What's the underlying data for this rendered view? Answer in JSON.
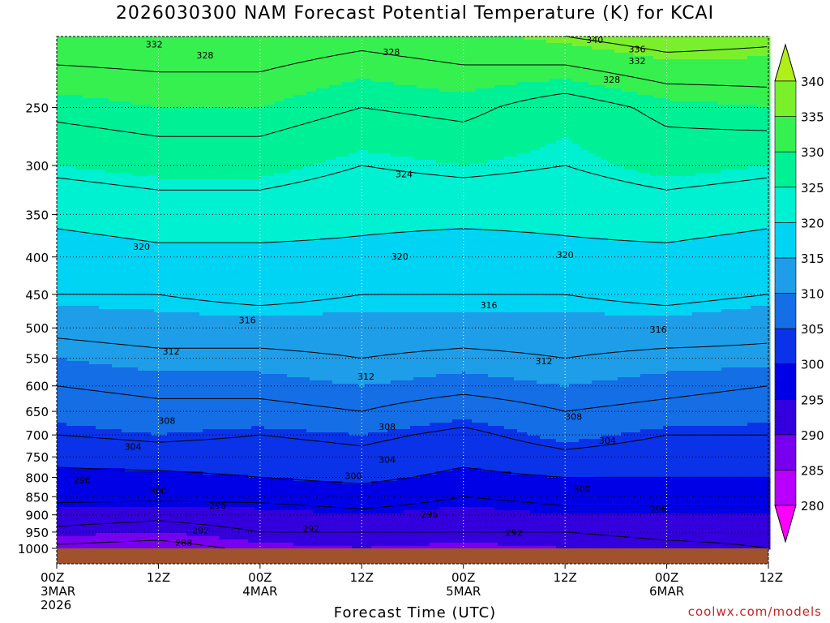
{
  "title": "2026030300 NAM Forecast Potential Temperature (K) for KCAI",
  "xlabel": "Forecast Time (UTC)",
  "credit": "coolwx.com/models",
  "chart_data": {
    "type": "heatmap",
    "title": "2026030300 NAM Forecast Potential Temperature (K) for KCAI",
    "xlabel": "Forecast Time (UTC)",
    "ylabel": "",
    "y_scale": "log",
    "y_inverted": true,
    "ylim": [
      1000,
      200
    ],
    "y_ticks": [
      250,
      300,
      350,
      400,
      450,
      500,
      550,
      600,
      650,
      700,
      750,
      800,
      850,
      900,
      950,
      1000
    ],
    "xlim": [
      0,
      84
    ],
    "x_ticks": [
      {
        "hour": 0,
        "lines": [
          "00Z",
          "3MAR",
          "2026"
        ]
      },
      {
        "hour": 12,
        "lines": [
          "12Z"
        ]
      },
      {
        "hour": 24,
        "lines": [
          "00Z",
          "4MAR"
        ]
      },
      {
        "hour": 36,
        "lines": [
          "12Z"
        ]
      },
      {
        "hour": 48,
        "lines": [
          "00Z",
          "5MAR"
        ]
      },
      {
        "hour": 60,
        "lines": [
          "12Z"
        ]
      },
      {
        "hour": 72,
        "lines": [
          "00Z",
          "6MAR"
        ]
      },
      {
        "hour": 84,
        "lines": [
          "12Z"
        ]
      }
    ],
    "grid": true,
    "colorbar": {
      "levels": [
        280,
        285,
        290,
        295,
        300,
        305,
        310,
        315,
        320,
        325,
        330,
        335,
        340
      ],
      "colors": [
        "#ff00ff",
        "#b700ff",
        "#7700ee",
        "#3300dd",
        "#0000e6",
        "#0a32e8",
        "#146ee6",
        "#1e9ee8",
        "#00d4f4",
        "#00f0d2",
        "#00f096",
        "#36f050",
        "#7aef2c",
        "#b0ef18"
      ],
      "position": "right"
    },
    "contour_interval": 4,
    "profiles": [
      {
        "hour": 0,
        "levels": [
          [
            1000,
            287
          ],
          [
            950,
            291
          ],
          [
            900,
            294
          ],
          [
            850,
            297
          ],
          [
            800,
            299
          ],
          [
            750,
            301
          ],
          [
            700,
            304
          ],
          [
            650,
            306
          ],
          [
            600,
            308
          ],
          [
            550,
            310
          ],
          [
            500,
            313
          ],
          [
            450,
            316
          ],
          [
            400,
            318
          ],
          [
            350,
            321
          ],
          [
            300,
            325
          ],
          [
            250,
            329
          ],
          [
            200,
            334
          ]
        ]
      },
      {
        "hour": 12,
        "levels": [
          [
            1000,
            286
          ],
          [
            950,
            290
          ],
          [
            900,
            293
          ],
          [
            850,
            297
          ],
          [
            800,
            299
          ],
          [
            750,
            302
          ],
          [
            700,
            305
          ],
          [
            650,
            307
          ],
          [
            600,
            309
          ],
          [
            550,
            311
          ],
          [
            500,
            314
          ],
          [
            450,
            316
          ],
          [
            400,
            319
          ],
          [
            350,
            322
          ],
          [
            300,
            326
          ],
          [
            250,
            330
          ],
          [
            200,
            334
          ]
        ]
      },
      {
        "hour": 24,
        "levels": [
          [
            1000,
            289
          ],
          [
            950,
            292
          ],
          [
            900,
            294
          ],
          [
            850,
            297
          ],
          [
            800,
            300
          ],
          [
            750,
            302
          ],
          [
            700,
            304
          ],
          [
            650,
            307
          ],
          [
            600,
            309
          ],
          [
            550,
            311
          ],
          [
            500,
            314
          ],
          [
            450,
            317
          ],
          [
            400,
            319
          ],
          [
            350,
            322
          ],
          [
            300,
            326
          ],
          [
            250,
            330
          ],
          [
            200,
            334
          ]
        ]
      },
      {
        "hour": 36,
        "levels": [
          [
            1000,
            290
          ],
          [
            950,
            292
          ],
          [
            900,
            295
          ],
          [
            850,
            298
          ],
          [
            800,
            301
          ],
          [
            750,
            303
          ],
          [
            700,
            305
          ],
          [
            650,
            308
          ],
          [
            600,
            310
          ],
          [
            550,
            312
          ],
          [
            500,
            314
          ],
          [
            450,
            316
          ],
          [
            400,
            319
          ],
          [
            350,
            321
          ],
          [
            300,
            324
          ],
          [
            250,
            328
          ],
          [
            200,
            333
          ]
        ]
      },
      {
        "hour": 48,
        "levels": [
          [
            1000,
            289
          ],
          [
            950,
            292
          ],
          [
            900,
            294
          ],
          [
            850,
            296
          ],
          [
            800,
            299
          ],
          [
            750,
            301
          ],
          [
            700,
            303
          ],
          [
            650,
            306
          ],
          [
            600,
            309
          ],
          [
            550,
            311
          ],
          [
            500,
            314
          ],
          [
            450,
            316
          ],
          [
            400,
            318
          ],
          [
            350,
            321
          ],
          [
            300,
            325
          ],
          [
            250,
            329
          ],
          [
            200,
            334
          ]
        ]
      },
      {
        "hour": 60,
        "levels": [
          [
            1000,
            290
          ],
          [
            950,
            292
          ],
          [
            900,
            295
          ],
          [
            850,
            297
          ],
          [
            800,
            300
          ],
          [
            750,
            303
          ],
          [
            700,
            306
          ],
          [
            650,
            308
          ],
          [
            600,
            310
          ],
          [
            550,
            312
          ],
          [
            500,
            314
          ],
          [
            450,
            316
          ],
          [
            400,
            319
          ],
          [
            350,
            321
          ],
          [
            300,
            324
          ],
          [
            250,
            326
          ],
          [
            200,
            336
          ]
        ]
      },
      {
        "hour": 72,
        "levels": [
          [
            1000,
            291
          ],
          [
            950,
            293
          ],
          [
            900,
            295
          ],
          [
            850,
            297
          ],
          [
            800,
            300
          ],
          [
            750,
            302
          ],
          [
            700,
            304
          ],
          [
            650,
            307
          ],
          [
            600,
            309
          ],
          [
            550,
            311
          ],
          [
            500,
            314
          ],
          [
            450,
            317
          ],
          [
            400,
            319
          ],
          [
            350,
            322
          ],
          [
            300,
            326
          ],
          [
            250,
            329
          ],
          [
            200,
            338
          ]
        ]
      },
      {
        "hour": 84,
        "levels": [
          [
            1000,
            292
          ],
          [
            950,
            293
          ],
          [
            900,
            295
          ],
          [
            850,
            297
          ],
          [
            800,
            300
          ],
          [
            750,
            302
          ],
          [
            700,
            304
          ],
          [
            650,
            306
          ],
          [
            600,
            308
          ],
          [
            550,
            311
          ],
          [
            500,
            313
          ],
          [
            450,
            316
          ],
          [
            400,
            318
          ],
          [
            350,
            321
          ],
          [
            300,
            325
          ],
          [
            250,
            330
          ],
          [
            200,
            337
          ]
        ]
      }
    ],
    "contour_labels": [
      {
        "value": 332,
        "hour": 11.5,
        "p": 205
      },
      {
        "value": 328,
        "hour": 17.5,
        "p": 212
      },
      {
        "value": 328,
        "hour": 39.5,
        "p": 210
      },
      {
        "value": 340,
        "hour": 63.5,
        "p": 202
      },
      {
        "value": 336,
        "hour": 68.5,
        "p": 208
      },
      {
        "value": 332,
        "hour": 68.5,
        "p": 216
      },
      {
        "value": 328,
        "hour": 65.5,
        "p": 229
      },
      {
        "value": 324,
        "hour": 41,
        "p": 308
      },
      {
        "value": 320,
        "hour": 10,
        "p": 387
      },
      {
        "value": 320,
        "hour": 40.5,
        "p": 399
      },
      {
        "value": 320,
        "hour": 60,
        "p": 397
      },
      {
        "value": 316,
        "hour": 22.5,
        "p": 488
      },
      {
        "value": 316,
        "hour": 51,
        "p": 465
      },
      {
        "value": 316,
        "hour": 71,
        "p": 502
      },
      {
        "value": 312,
        "hour": 13.5,
        "p": 538
      },
      {
        "value": 312,
        "hour": 36.5,
        "p": 582
      },
      {
        "value": 312,
        "hour": 57.5,
        "p": 555
      },
      {
        "value": 308,
        "hour": 13,
        "p": 669
      },
      {
        "value": 308,
        "hour": 39,
        "p": 682
      },
      {
        "value": 308,
        "hour": 61,
        "p": 661
      },
      {
        "value": 304,
        "hour": 9,
        "p": 726
      },
      {
        "value": 304,
        "hour": 39,
        "p": 756
      },
      {
        "value": 304,
        "hour": 65,
        "p": 712
      },
      {
        "value": 300,
        "hour": 12,
        "p": 834
      },
      {
        "value": 300,
        "hour": 35,
        "p": 796
      },
      {
        "value": 300,
        "hour": 62,
        "p": 829
      },
      {
        "value": 296,
        "hour": 3,
        "p": 806
      },
      {
        "value": 296,
        "hour": 19,
        "p": 874
      },
      {
        "value": 296,
        "hour": 44,
        "p": 898
      },
      {
        "value": 296,
        "hour": 71,
        "p": 884
      },
      {
        "value": 292,
        "hour": 17,
        "p": 946
      },
      {
        "value": 292,
        "hour": 30,
        "p": 940
      },
      {
        "value": 292,
        "hour": 54,
        "p": 952
      },
      {
        "value": 288,
        "hour": 15,
        "p": 982
      }
    ]
  }
}
